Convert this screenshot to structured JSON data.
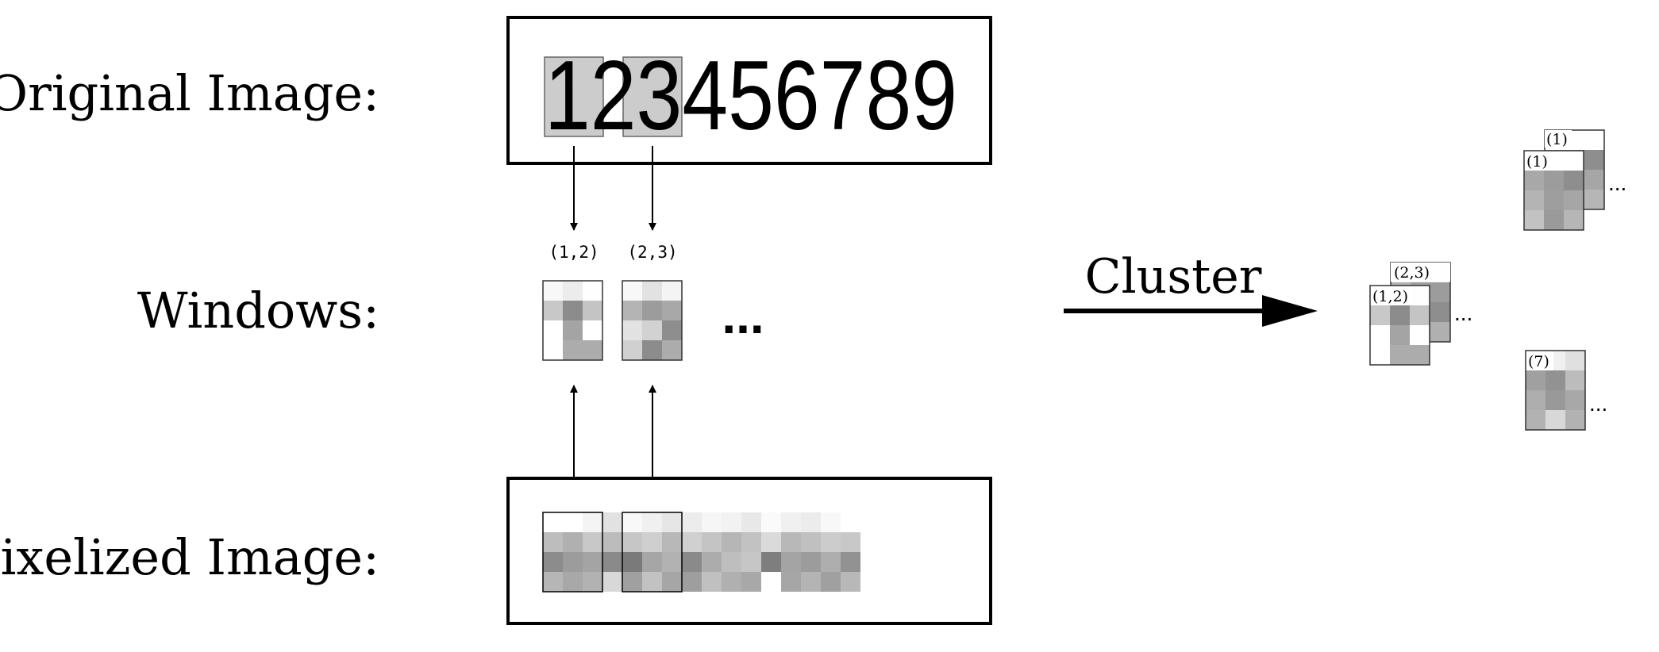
{
  "labels": {
    "original": "Original Image:",
    "windows": "Windows:",
    "pixelized": "Pixelized Image:"
  },
  "digits": "123456789",
  "window_tags": [
    "(1,2)",
    "(2,3)"
  ],
  "ellipsis": "...",
  "cluster_label": "Cluster",
  "clusters": [
    {
      "front": "(1)",
      "back": "(1)",
      "more": "..."
    },
    {
      "front": "(1,2)",
      "back": "(2,3)",
      "more": "..."
    },
    {
      "front": "(7)",
      "more": "..."
    }
  ],
  "gray_levels": {
    "window_1_2": [
      [
        "#f8f8f8",
        "#ececec",
        "#fefefe"
      ],
      [
        "#c8c8c8",
        "#8c8c8c",
        "#c4c4c4"
      ],
      [
        "#ffffff",
        "#a4a4a4",
        "#ffffff"
      ],
      [
        "#ffffff",
        "#acacac",
        "#acacac"
      ]
    ],
    "window_2_3": [
      [
        "#f8f8f8",
        "#e2e2e2",
        "#f4f4f4"
      ],
      [
        "#b4b4b4",
        "#9c9c9c",
        "#a8a8a8"
      ],
      [
        "#e2e2e2",
        "#d2d2d2",
        "#8e8e8e"
      ],
      [
        "#d0d0d0",
        "#8c8c8c",
        "#acacac"
      ]
    ],
    "strip": [
      [
        "#ffffff",
        "#ffffff",
        "#f4f4f4",
        "#e2e2e2",
        "#f8f8f8",
        "#f0f0f0",
        "#e6e6e6",
        "#ececec",
        "#f6f6f6",
        "#f2f2f2",
        "#e8e8e8",
        "#fafafa",
        "#f0f0f0",
        "#ececec",
        "#f8f8f8",
        "#ffffff"
      ],
      [
        "#bdbdbd",
        "#b0b0b0",
        "#c8c8c8",
        "#bcbcbc",
        "#c6c6c6",
        "#cfcfcf",
        "#b8b8b8",
        "#d0d0d0",
        "#c4c4c4",
        "#b6b6b6",
        "#c2c2c2",
        "#dadada",
        "#b8b8b8",
        "#c0c0c0",
        "#cccccc",
        "#c8c8c8"
      ],
      [
        "#8c8c8c",
        "#9c9c9c",
        "#a4a4a4",
        "#8a8a8a",
        "#7a7a7a",
        "#a6a6a6",
        "#b2b2b2",
        "#8a8a8a",
        "#acacac",
        "#bebebe",
        "#c6c6c6",
        "#7e7e7e",
        "#a4a4a4",
        "#9c9c9c",
        "#aeaeae",
        "#929292"
      ],
      [
        "#b6b6b6",
        "#a8a8a8",
        "#b2b2b2",
        "#d8d8d8",
        "#a0a0a0",
        "#c2c2c2",
        "#a6a6a6",
        "#9e9e9e",
        "#c0c0c0",
        "#b0b0b0",
        "#a8a8a8",
        "#ffffff",
        "#a6a6a6",
        "#b4b4b4",
        "#a0a0a0",
        "#b8b8b8"
      ]
    ],
    "cluster_1": [
      [
        "#ffffff",
        "#ffffff",
        "#ffffff"
      ],
      [
        "#a8a8a8",
        "#9c9c9c",
        "#8e8e8e"
      ],
      [
        "#b4b4b4",
        "#9e9e9e",
        "#a6a6a6"
      ],
      [
        "#c2c2c2",
        "#9a9a9a",
        "#b6b6b6"
      ]
    ],
    "cluster_7": [
      [
        "#ffffff",
        "#f0f0f0",
        "#e0e0e0"
      ],
      [
        "#a0a0a0",
        "#929292",
        "#bcbcbc"
      ],
      [
        "#aeaeae",
        "#999999",
        "#a8a8a8"
      ],
      [
        "#b2b2b2",
        "#d8d8d8",
        "#b2b2b2"
      ]
    ],
    "cluster_2_3_back": [
      [
        "#f4f4f4",
        "#e8e8e8",
        "#f8f8f8"
      ],
      [
        "#b4b4b4",
        "#a0a0a0",
        "#9c9c9c"
      ],
      [
        "#d6d6d6",
        "#c4c4c4",
        "#8e8e8e"
      ],
      [
        "#d2d2d2",
        "#8e8e8e",
        "#b0b0b0"
      ]
    ]
  }
}
